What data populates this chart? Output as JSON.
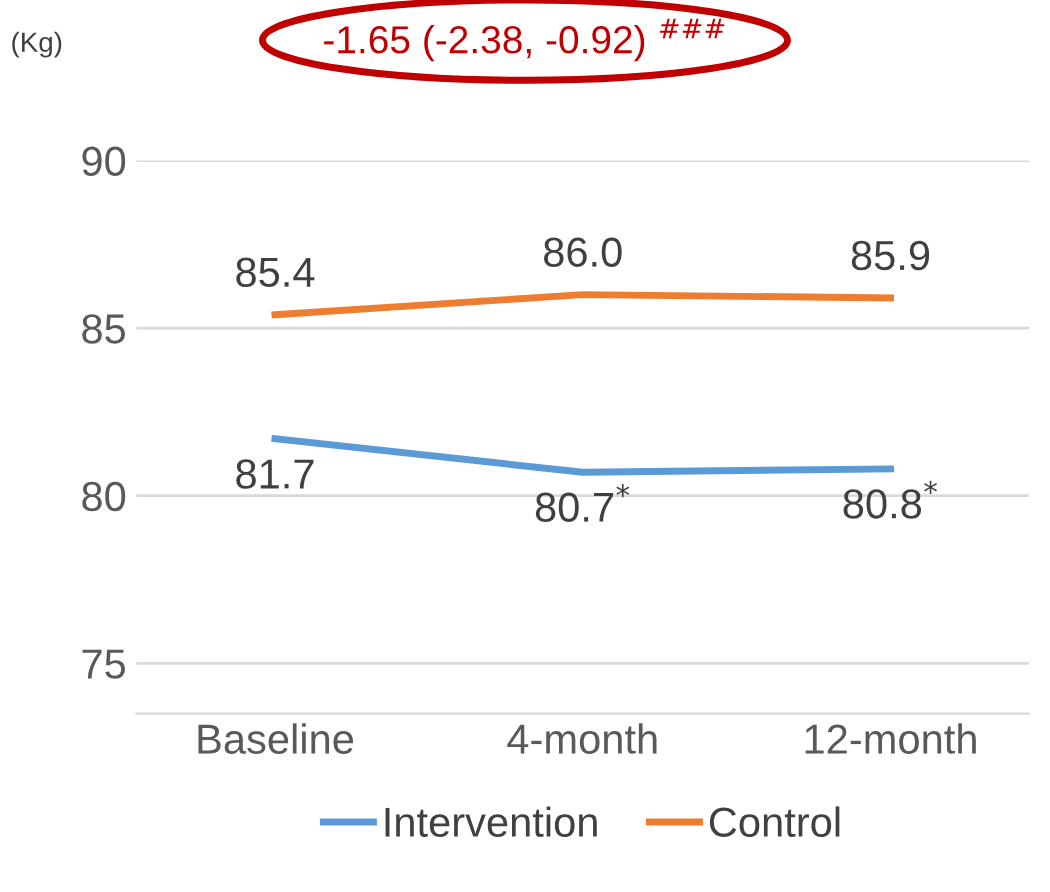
{
  "chart_data": {
    "type": "line",
    "ylabel": "(Kg)",
    "categories": [
      "Baseline",
      "4-month",
      "12-month"
    ],
    "series": [
      {
        "name": "Intervention",
        "color": "#5b9bd5",
        "values": [
          81.7,
          80.7,
          80.8
        ],
        "value_labels": [
          "81.7",
          "80.7$^{*}$",
          "80.8$^{*}$"
        ]
      },
      {
        "name": "Control",
        "color": "#ed7d31",
        "values": [
          85.4,
          86.0,
          85.9
        ],
        "value_labels": [
          "85.4",
          "86.0",
          "85.9"
        ]
      }
    ],
    "ylim": [
      73.5,
      90
    ],
    "yticks": [
      75,
      80,
      85,
      90
    ],
    "grid": "y",
    "legend": "bottom",
    "marker": "none",
    "annotations": [
      "-1.65 (-2.38, -0.92) $^{###}$"
    ]
  }
}
